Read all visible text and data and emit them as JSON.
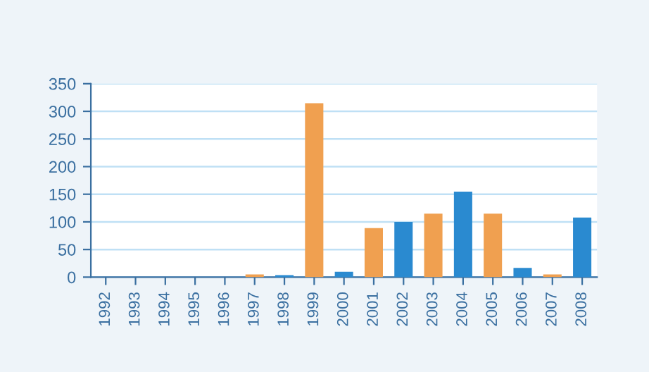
{
  "chart_data": {
    "type": "bar",
    "categories": [
      "1992",
      "1993",
      "1994",
      "1995",
      "1996",
      "1997",
      "1998",
      "1999",
      "2000",
      "2001",
      "2002",
      "2003",
      "2004",
      "2005",
      "2006",
      "2007",
      "2008"
    ],
    "values": [
      null,
      null,
      null,
      null,
      null,
      3,
      2,
      313,
      8,
      87,
      98,
      113,
      153,
      113,
      15,
      3,
      106
    ],
    "colors": [
      "#f0a050",
      "#2a8ad0",
      "#f0a050",
      "#2a8ad0",
      "#f0a050",
      "#f0a050",
      "#2a8ad0",
      "#f0a050",
      "#2a8ad0",
      "#f0a050",
      "#2a8ad0",
      "#f0a050",
      "#2a8ad0",
      "#f0a050",
      "#2a8ad0",
      "#f0a050",
      "#2a8ad0"
    ],
    "ylim": [
      0,
      350
    ],
    "yticks": [
      0,
      50,
      100,
      150,
      200,
      250,
      300,
      350
    ],
    "grid": "y"
  }
}
